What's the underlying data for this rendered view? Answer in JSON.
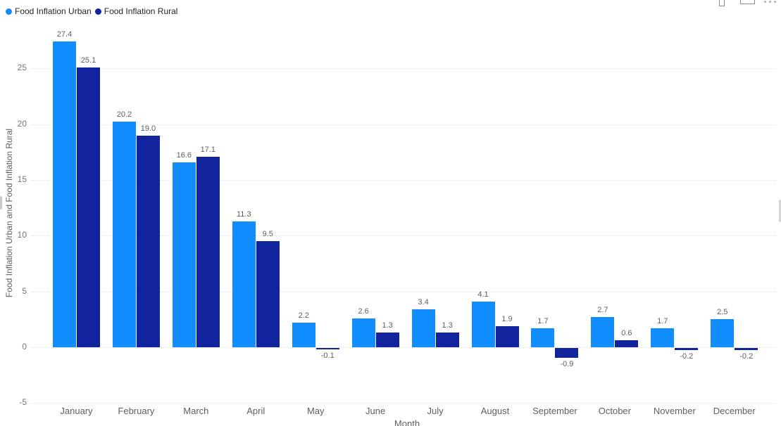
{
  "legend": {
    "items": [
      {
        "label": "Food Inflation Urban",
        "color": "#118DFF"
      },
      {
        "label": "Food Inflation Rural",
        "color": "#12239E"
      }
    ]
  },
  "header_icons": [
    {
      "name": "filter-icon"
    },
    {
      "name": "focus-mode-icon"
    },
    {
      "name": "more-options-icon"
    }
  ],
  "chart_data": {
    "type": "bar",
    "title": "",
    "xlabel": "Month",
    "ylabel": "Food Inflation Urban and Food Inflation Rural",
    "categories": [
      "January",
      "February",
      "March",
      "April",
      "May",
      "June",
      "July",
      "August",
      "September",
      "October",
      "November",
      "December"
    ],
    "series": [
      {
        "name": "Food Inflation Urban",
        "color": "#118DFF",
        "values": [
          27.4,
          20.2,
          16.6,
          11.3,
          2.2,
          2.6,
          3.4,
          4.1,
          1.7,
          2.7,
          1.7,
          2.5
        ]
      },
      {
        "name": "Food Inflation Rural",
        "color": "#12239E",
        "values": [
          25.1,
          19.0,
          17.1,
          9.5,
          -0.1,
          1.3,
          1.3,
          1.9,
          -0.9,
          0.6,
          -0.2,
          -0.2
        ]
      }
    ],
    "yticks": [
      -5,
      0,
      5,
      10,
      15,
      20,
      25
    ],
    "ylim": [
      -5,
      28
    ],
    "grid": "dotted-horizontal",
    "legend_position": "top-left",
    "data_labels": "one-decimal"
  }
}
